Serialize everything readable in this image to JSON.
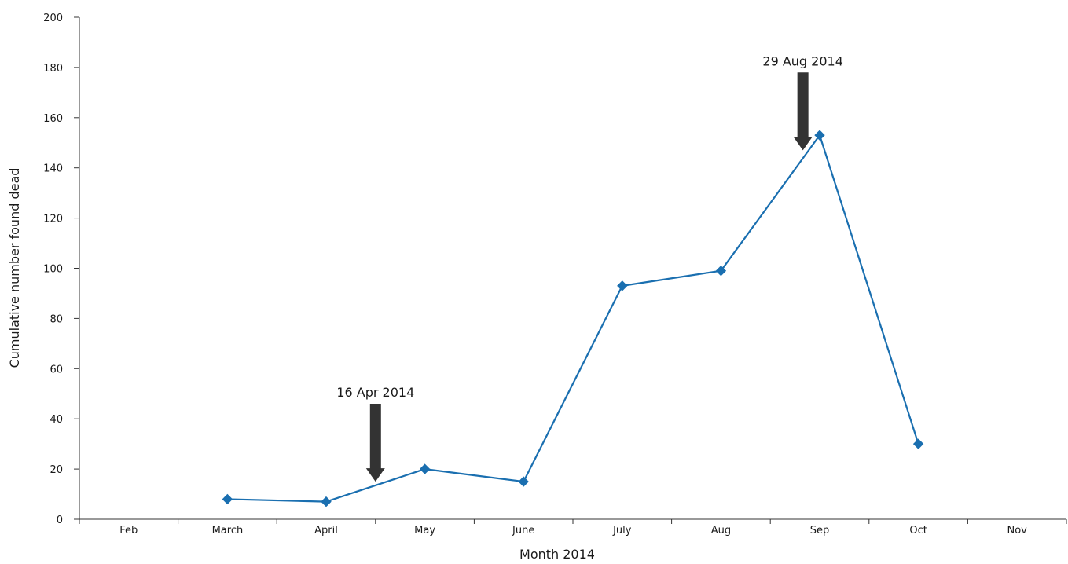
{
  "chart_data": {
    "type": "line",
    "title": "",
    "xlabel": "Month 2014",
    "ylabel": "Cumulative number found dead",
    "categories": [
      "Feb",
      "March",
      "April",
      "May",
      "June",
      "July",
      "Aug",
      "Sep",
      "Oct",
      "Nov"
    ],
    "ylim": [
      0,
      200
    ],
    "yticks": [
      0,
      20,
      40,
      60,
      80,
      100,
      120,
      140,
      160,
      180,
      200
    ],
    "grid": false,
    "series": [
      {
        "values": [
          null,
          8,
          7,
          20,
          15,
          93,
          99,
          153,
          30,
          null
        ],
        "color": "#1a6fb0",
        "marker": "diamond"
      }
    ],
    "annotations": [
      {
        "text": "16 Apr 2014",
        "x_between": [
          "April",
          "May"
        ],
        "x_fraction": 0.5,
        "arrow_tip_y": 15,
        "arrow_tail_y": 46
      },
      {
        "text": "29 Aug 2014",
        "x_between": [
          "Aug",
          "Sep"
        ],
        "x_fraction": 0.83,
        "arrow_tip_y": 147,
        "arrow_tail_y": 178
      }
    ],
    "annotation_color": "#333333"
  }
}
